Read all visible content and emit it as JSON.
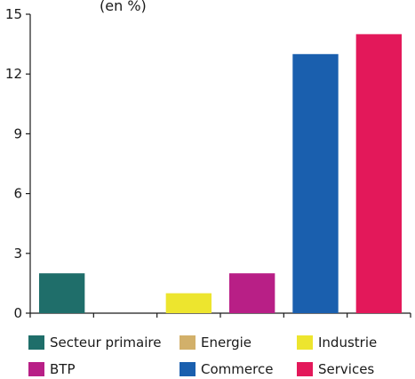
{
  "title_fragment": "(en %)",
  "chart_data": {
    "type": "bar",
    "categories": [
      "Secteur primaire",
      "Energie",
      "Industrie",
      "BTP",
      "Commerce",
      "Services"
    ],
    "values": [
      2,
      0,
      1,
      2,
      13,
      14
    ],
    "colors": [
      "#1f6e6a",
      "#d2b06a",
      "#ede52e",
      "#b81f86",
      "#1a5fae",
      "#e3185a"
    ],
    "yticks": [
      0,
      3,
      6,
      9,
      12,
      15
    ],
    "ylim": [
      0,
      15
    ],
    "legend_position": "bottom"
  }
}
